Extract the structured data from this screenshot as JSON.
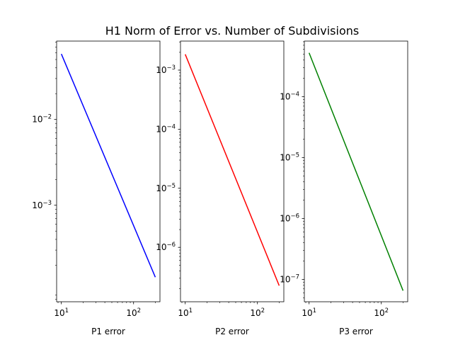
{
  "figure": {
    "title": "H1 Norm of Error vs. Number of Subdivisions"
  },
  "chart_data": [
    {
      "type": "line",
      "xlabel": "P1 error",
      "xscale": "log",
      "yscale": "log",
      "xlim": [
        8.6,
        232
      ],
      "ylim": [
        7.5e-05,
        0.082
      ],
      "xticks": [
        {
          "value": 10,
          "base": "10",
          "exp": "1"
        },
        {
          "value": 100,
          "base": "10",
          "exp": "2"
        }
      ],
      "yticks": [
        {
          "value": 0.001,
          "base": "10",
          "exp": "−3"
        },
        {
          "value": 0.01,
          "base": "10",
          "exp": "−2"
        }
      ],
      "series": [
        {
          "color": "#0000ff",
          "x": [
            10,
            200
          ],
          "y": [
            0.058,
            0.000145
          ]
        }
      ]
    },
    {
      "type": "line",
      "xlabel": "P2 error",
      "xscale": "log",
      "yscale": "log",
      "xlim": [
        8.6,
        232
      ],
      "ylim": [
        1.2e-07,
        0.0031
      ],
      "xticks": [
        {
          "value": 10,
          "base": "10",
          "exp": "1"
        },
        {
          "value": 100,
          "base": "10",
          "exp": "2"
        }
      ],
      "yticks": [
        {
          "value": 1e-06,
          "base": "10",
          "exp": "−6"
        },
        {
          "value": 1e-05,
          "base": "10",
          "exp": "−5"
        },
        {
          "value": 0.0001,
          "base": "10",
          "exp": "−4"
        },
        {
          "value": 0.001,
          "base": "10",
          "exp": "−3"
        }
      ],
      "series": [
        {
          "color": "#ff0000",
          "x": [
            10,
            200
          ],
          "y": [
            0.00185,
            2.25e-07
          ]
        }
      ]
    },
    {
      "type": "line",
      "xlabel": "P3 error",
      "xscale": "log",
      "yscale": "log",
      "xlim": [
        8.6,
        232
      ],
      "ylim": [
        4.3e-08,
        0.00082
      ],
      "xticks": [
        {
          "value": 10,
          "base": "10",
          "exp": "1"
        },
        {
          "value": 100,
          "base": "10",
          "exp": "2"
        }
      ],
      "yticks": [
        {
          "value": 1e-07,
          "base": "10",
          "exp": "−7"
        },
        {
          "value": 1e-06,
          "base": "10",
          "exp": "−6"
        },
        {
          "value": 1e-05,
          "base": "10",
          "exp": "−5"
        },
        {
          "value": 0.0001,
          "base": "10",
          "exp": "−4"
        }
      ],
      "series": [
        {
          "color": "#008000",
          "x": [
            10,
            200
          ],
          "y": [
            0.000525,
            6.55e-08
          ]
        }
      ]
    }
  ]
}
